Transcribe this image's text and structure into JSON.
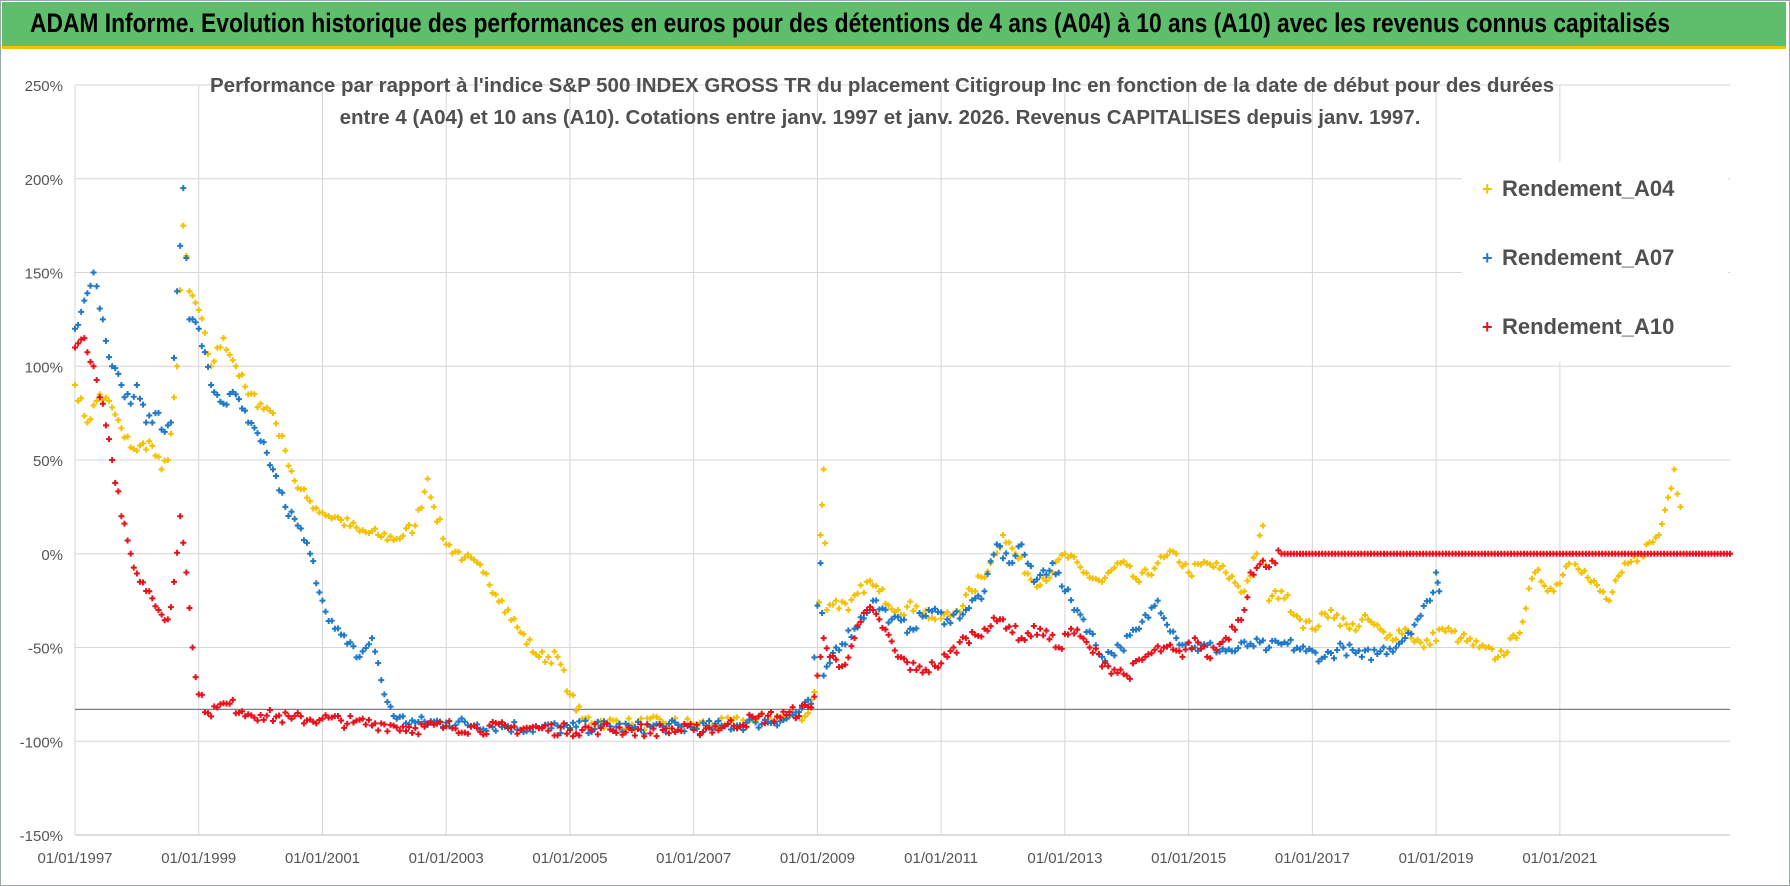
{
  "header": {
    "banner": "ADAM Informe. Evolution historique des performances en euros pour des détentions de 4 ans (A04) à 10 ans (A10) avec les revenus connus capitalisés"
  },
  "chart_data": {
    "type": "scatter",
    "title_line1": "Performance par rapport à l'indice S&P 500 INDEX GROSS TR  du placement Citigroup Inc en fonction de la date de début pour des durées",
    "title_line2": "entre 4 (A04) et 10 ans (A10).  Cotations entre janv. 1997 et janv. 2026. Revenus CAPITALISES depuis janv. 1997.",
    "xlabel": "",
    "ylabel": "",
    "xlim": [
      1997.0,
      2023.75
    ],
    "ylim": [
      -150,
      250
    ],
    "y_ticks": [
      "250%",
      "200%",
      "150%",
      "100%",
      "50%",
      "0%",
      "-50%",
      "-100%",
      "-150%"
    ],
    "y_tick_values": [
      250,
      200,
      150,
      100,
      50,
      0,
      -50,
      -100,
      -150
    ],
    "x_ticks": [
      "01/01/1997",
      "01/01/1999",
      "01/01/2001",
      "01/01/2003",
      "01/01/2005",
      "01/01/2007",
      "01/01/2009",
      "01/01/2011",
      "01/01/2013",
      "01/01/2015",
      "01/01/2017",
      "01/01/2019",
      "01/01/2021"
    ],
    "x_tick_values": [
      1997,
      1999,
      2001,
      2003,
      2005,
      2007,
      2009,
      2011,
      2013,
      2015,
      2017,
      2019,
      2021
    ],
    "grid": true,
    "legend_position": "top-right",
    "series": [
      {
        "name": "Rendement_A04",
        "color": "#f5c000",
        "points": [
          [
            1997.0,
            90
          ],
          [
            1997.2,
            70
          ],
          [
            1997.4,
            85
          ],
          [
            1997.6,
            78
          ],
          [
            1997.8,
            62
          ],
          [
            1998.0,
            55
          ],
          [
            1998.2,
            60
          ],
          [
            1998.4,
            45
          ],
          [
            1998.5,
            50
          ],
          [
            1998.65,
            100
          ],
          [
            1998.75,
            175
          ],
          [
            1998.85,
            140
          ],
          [
            1999.0,
            130
          ],
          [
            1999.2,
            100
          ],
          [
            1999.4,
            115
          ],
          [
            1999.6,
            100
          ],
          [
            1999.8,
            85
          ],
          [
            2000.0,
            80
          ],
          [
            2000.2,
            75
          ],
          [
            2000.4,
            55
          ],
          [
            2000.6,
            35
          ],
          [
            2000.8,
            28
          ],
          [
            2001.0,
            22
          ],
          [
            2001.3,
            18
          ],
          [
            2001.6,
            12
          ],
          [
            2001.9,
            10
          ],
          [
            2002.2,
            8
          ],
          [
            2002.5,
            15
          ],
          [
            2002.7,
            40
          ],
          [
            2002.8,
            25
          ],
          [
            2003.0,
            5
          ],
          [
            2003.3,
            -2
          ],
          [
            2003.6,
            -10
          ],
          [
            2003.9,
            -25
          ],
          [
            2004.2,
            -42
          ],
          [
            2004.5,
            -55
          ],
          [
            2004.8,
            -55
          ],
          [
            2005.0,
            -75
          ],
          [
            2005.2,
            -88
          ],
          [
            2005.6,
            -90
          ],
          [
            2006.0,
            -91
          ],
          [
            2006.5,
            -90
          ],
          [
            2007.0,
            -91
          ],
          [
            2007.5,
            -91
          ],
          [
            2008.0,
            -89
          ],
          [
            2008.5,
            -87
          ],
          [
            2008.85,
            -85
          ],
          [
            2009.0,
            -65
          ],
          [
            2009.05,
            10
          ],
          [
            2009.1,
            45
          ],
          [
            2009.15,
            -30
          ],
          [
            2009.3,
            -25
          ],
          [
            2009.5,
            -30
          ],
          [
            2009.8,
            -15
          ],
          [
            2010.0,
            -20
          ],
          [
            2010.3,
            -30
          ],
          [
            2010.6,
            -28
          ],
          [
            2010.9,
            -35
          ],
          [
            2011.2,
            -32
          ],
          [
            2011.5,
            -20
          ],
          [
            2011.8,
            -5
          ],
          [
            2012.0,
            10
          ],
          [
            2012.2,
            0
          ],
          [
            2012.5,
            -15
          ],
          [
            2012.8,
            -10
          ],
          [
            2013.0,
            0
          ],
          [
            2013.3,
            -10
          ],
          [
            2013.6,
            -15
          ],
          [
            2013.9,
            -5
          ],
          [
            2014.2,
            -15
          ],
          [
            2014.5,
            -5
          ],
          [
            2014.8,
            0
          ],
          [
            2015.0,
            -10
          ],
          [
            2015.3,
            -5
          ],
          [
            2015.6,
            -10
          ],
          [
            2015.9,
            -20
          ],
          [
            2016.1,
            0
          ],
          [
            2016.2,
            15
          ],
          [
            2016.3,
            -25
          ],
          [
            2016.5,
            -20
          ],
          [
            2016.8,
            -35
          ],
          [
            2017.0,
            -40
          ],
          [
            2017.3,
            -30
          ],
          [
            2017.6,
            -40
          ],
          [
            2017.9,
            -35
          ],
          [
            2018.2,
            -45
          ],
          [
            2018.5,
            -40
          ],
          [
            2018.8,
            -50
          ],
          [
            2019.1,
            -40
          ],
          [
            2019.4,
            -45
          ],
          [
            2019.7,
            -50
          ],
          [
            2020.0,
            -55
          ],
          [
            2020.3,
            -45
          ],
          [
            2020.6,
            -10
          ],
          [
            2020.9,
            -20
          ],
          [
            2021.2,
            0
          ],
          [
            2021.5,
            -15
          ],
          [
            2021.8,
            -25
          ],
          [
            2022.0,
            -10
          ],
          [
            2022.3,
            0
          ],
          [
            2022.6,
            10
          ],
          [
            2022.75,
            30
          ],
          [
            2022.85,
            45
          ],
          [
            2022.95,
            25
          ]
        ]
      },
      {
        "name": "Rendement_A07",
        "color": "#1f78c8",
        "points": [
          [
            1997.0,
            120
          ],
          [
            1997.15,
            135
          ],
          [
            1997.3,
            150
          ],
          [
            1997.45,
            125
          ],
          [
            1997.6,
            100
          ],
          [
            1997.75,
            90
          ],
          [
            1997.9,
            80
          ],
          [
            1998.0,
            90
          ],
          [
            1998.15,
            70
          ],
          [
            1998.3,
            75
          ],
          [
            1998.45,
            65
          ],
          [
            1998.55,
            70
          ],
          [
            1998.65,
            140
          ],
          [
            1998.75,
            195
          ],
          [
            1998.85,
            125
          ],
          [
            1999.0,
            120
          ],
          [
            1999.2,
            90
          ],
          [
            1999.4,
            80
          ],
          [
            1999.6,
            85
          ],
          [
            1999.8,
            70
          ],
          [
            2000.0,
            60
          ],
          [
            2000.2,
            45
          ],
          [
            2000.4,
            25
          ],
          [
            2000.6,
            15
          ],
          [
            2000.8,
            0
          ],
          [
            2001.0,
            -25
          ],
          [
            2001.2,
            -40
          ],
          [
            2001.4,
            -48
          ],
          [
            2001.6,
            -55
          ],
          [
            2001.8,
            -45
          ],
          [
            2002.0,
            -75
          ],
          [
            2002.2,
            -88
          ],
          [
            2002.5,
            -90
          ],
          [
            2003.0,
            -90
          ],
          [
            2003.5,
            -91
          ],
          [
            2004.0,
            -92
          ],
          [
            2004.5,
            -93
          ],
          [
            2005.0,
            -93
          ],
          [
            2005.5,
            -92
          ],
          [
            2006.0,
            -93
          ],
          [
            2006.5,
            -92
          ],
          [
            2007.0,
            -93
          ],
          [
            2007.5,
            -92
          ],
          [
            2008.0,
            -90
          ],
          [
            2008.5,
            -88
          ],
          [
            2008.9,
            -80
          ],
          [
            2009.05,
            -5
          ],
          [
            2009.1,
            -65
          ],
          [
            2009.3,
            -50
          ],
          [
            2009.6,
            -40
          ],
          [
            2009.9,
            -25
          ],
          [
            2010.2,
            -35
          ],
          [
            2010.5,
            -40
          ],
          [
            2010.8,
            -30
          ],
          [
            2011.1,
            -35
          ],
          [
            2011.4,
            -30
          ],
          [
            2011.7,
            -20
          ],
          [
            2011.9,
            5
          ],
          [
            2012.1,
            -5
          ],
          [
            2012.3,
            5
          ],
          [
            2012.5,
            -15
          ],
          [
            2012.8,
            -5
          ],
          [
            2013.0,
            -20
          ],
          [
            2013.3,
            -35
          ],
          [
            2013.6,
            -55
          ],
          [
            2013.9,
            -50
          ],
          [
            2014.2,
            -40
          ],
          [
            2014.5,
            -25
          ],
          [
            2014.8,
            -45
          ],
          [
            2015.1,
            -50
          ],
          [
            2015.4,
            -50
          ],
          [
            2015.7,
            -52
          ],
          [
            2016.0,
            -48
          ],
          [
            2016.3,
            -50
          ],
          [
            2016.6,
            -48
          ],
          [
            2016.9,
            -52
          ],
          [
            2017.2,
            -55
          ],
          [
            2017.5,
            -50
          ],
          [
            2017.8,
            -55
          ],
          [
            2018.1,
            -52
          ],
          [
            2018.4,
            -48
          ],
          [
            2018.7,
            -35
          ],
          [
            2018.9,
            -25
          ],
          [
            2019.0,
            -10
          ],
          [
            2019.05,
            -20
          ]
        ]
      },
      {
        "name": "Rendement_A10",
        "color": "#e8111b",
        "points": [
          [
            1997.0,
            110
          ],
          [
            1997.15,
            115
          ],
          [
            1997.3,
            100
          ],
          [
            1997.45,
            80
          ],
          [
            1997.6,
            50
          ],
          [
            1997.75,
            20
          ],
          [
            1997.9,
            0
          ],
          [
            1998.05,
            -15
          ],
          [
            1998.2,
            -20
          ],
          [
            1998.35,
            -30
          ],
          [
            1998.5,
            -35
          ],
          [
            1998.6,
            -15
          ],
          [
            1998.7,
            20
          ],
          [
            1998.8,
            -10
          ],
          [
            1998.9,
            -50
          ],
          [
            1999.0,
            -75
          ],
          [
            1999.15,
            -85
          ],
          [
            1999.3,
            -82
          ],
          [
            1999.5,
            -80
          ],
          [
            1999.7,
            -84
          ],
          [
            2000.0,
            -86
          ],
          [
            2000.5,
            -88
          ],
          [
            2001.0,
            -88
          ],
          [
            2001.5,
            -90
          ],
          [
            2002.0,
            -91
          ],
          [
            2002.5,
            -93
          ],
          [
            2003.0,
            -92
          ],
          [
            2003.5,
            -93
          ],
          [
            2004.0,
            -93
          ],
          [
            2004.5,
            -93
          ],
          [
            2005.0,
            -94
          ],
          [
            2005.5,
            -93
          ],
          [
            2006.0,
            -94
          ],
          [
            2006.5,
            -94
          ],
          [
            2007.0,
            -94
          ],
          [
            2007.5,
            -92
          ],
          [
            2008.0,
            -88
          ],
          [
            2008.5,
            -86
          ],
          [
            2008.9,
            -82
          ],
          [
            2009.0,
            -65
          ],
          [
            2009.1,
            -45
          ],
          [
            2009.2,
            -55
          ],
          [
            2009.4,
            -60
          ],
          [
            2009.6,
            -45
          ],
          [
            2009.8,
            -30
          ],
          [
            2010.0,
            -35
          ],
          [
            2010.3,
            -55
          ],
          [
            2010.6,
            -62
          ],
          [
            2010.9,
            -60
          ],
          [
            2011.1,
            -55
          ],
          [
            2011.4,
            -45
          ],
          [
            2011.7,
            -40
          ],
          [
            2012.0,
            -35
          ],
          [
            2012.3,
            -45
          ],
          [
            2012.6,
            -40
          ],
          [
            2012.9,
            -50
          ],
          [
            2013.1,
            -40
          ],
          [
            2013.4,
            -50
          ],
          [
            2013.7,
            -60
          ],
          [
            2014.0,
            -65
          ],
          [
            2014.3,
            -55
          ],
          [
            2014.6,
            -50
          ],
          [
            2014.9,
            -55
          ],
          [
            2015.1,
            -45
          ],
          [
            2015.3,
            -55
          ],
          [
            2015.6,
            -45
          ],
          [
            2015.9,
            -30
          ],
          [
            2016.0,
            -10
          ],
          [
            2016.5,
            0
          ],
          [
            2017.0,
            0
          ],
          [
            2018.0,
            0
          ],
          [
            2019.0,
            0
          ],
          [
            2020.0,
            0
          ],
          [
            2021.0,
            0
          ],
          [
            2022.0,
            0
          ],
          [
            2023.0,
            0
          ],
          [
            2023.75,
            0
          ]
        ]
      }
    ]
  }
}
